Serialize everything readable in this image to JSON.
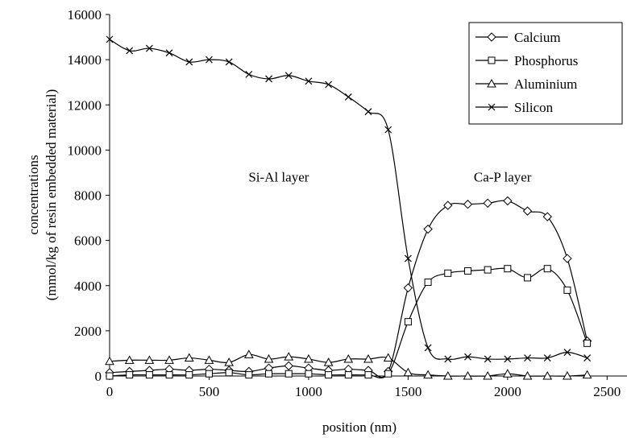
{
  "chart_data": {
    "type": "line",
    "title": "",
    "xlabel": "position (nm)",
    "ylabel_lines": [
      "concentrations",
      "(mmol/kg of resin embedded material)"
    ],
    "xlim": [
      0,
      2500
    ],
    "ylim": [
      0,
      16000
    ],
    "xticks": [
      0,
      500,
      1000,
      1500,
      2000,
      2500
    ],
    "yticks": [
      0,
      2000,
      4000,
      6000,
      8000,
      10000,
      12000,
      14000,
      16000
    ],
    "grid": false,
    "legend_position": "top-right",
    "annotations": [
      {
        "text": "Si-Al layer",
        "x": 850,
        "y": 8600
      },
      {
        "text": "Ca-P layer",
        "x": 1975,
        "y": 8600
      }
    ],
    "series": [
      {
        "name": "Calcium",
        "marker": "diamond",
        "x": [
          0,
          100,
          200,
          300,
          400,
          500,
          600,
          700,
          800,
          900,
          1000,
          1100,
          1200,
          1300,
          1400,
          1500,
          1600,
          1700,
          1800,
          1900,
          2000,
          2100,
          2200,
          2300,
          2400
        ],
        "y": [
          150,
          200,
          250,
          300,
          250,
          300,
          250,
          200,
          350,
          450,
          350,
          250,
          300,
          250,
          200,
          3900,
          6500,
          7550,
          7600,
          7650,
          7750,
          7300,
          7050,
          5200,
          1550
        ]
      },
      {
        "name": "Phosphorus",
        "marker": "square",
        "x": [
          0,
          100,
          200,
          300,
          400,
          500,
          600,
          700,
          800,
          900,
          1000,
          1100,
          1200,
          1300,
          1400,
          1500,
          1600,
          1700,
          1800,
          1900,
          2000,
          2100,
          2200,
          2300,
          2400
        ],
        "y": [
          0,
          50,
          50,
          50,
          50,
          100,
          150,
          50,
          100,
          100,
          100,
          50,
          50,
          50,
          100,
          2400,
          4150,
          4550,
          4650,
          4700,
          4750,
          4350,
          4750,
          3800,
          1450
        ]
      },
      {
        "name": "Aluminium",
        "marker": "triangle",
        "x": [
          0,
          100,
          200,
          300,
          400,
          500,
          600,
          700,
          800,
          900,
          1000,
          1100,
          1200,
          1300,
          1400,
          1500,
          1600,
          1700,
          1800,
          1900,
          2000,
          2100,
          2200,
          2300,
          2400
        ],
        "y": [
          650,
          700,
          700,
          700,
          800,
          700,
          600,
          950,
          750,
          850,
          750,
          600,
          750,
          750,
          800,
          150,
          50,
          0,
          0,
          0,
          100,
          0,
          0,
          0,
          50
        ]
      },
      {
        "name": "Silicon",
        "marker": "x",
        "x": [
          0,
          100,
          200,
          300,
          400,
          500,
          600,
          700,
          800,
          900,
          1000,
          1100,
          1200,
          1300,
          1400,
          1500,
          1600,
          1700,
          1800,
          1900,
          2000,
          2100,
          2200,
          2300,
          2400
        ],
        "y": [
          14900,
          14400,
          14500,
          14300,
          13900,
          14000,
          13900,
          13350,
          13150,
          13300,
          13050,
          12900,
          12350,
          11700,
          10900,
          5200,
          1250,
          750,
          850,
          750,
          750,
          800,
          800,
          1050,
          800
        ]
      }
    ]
  }
}
